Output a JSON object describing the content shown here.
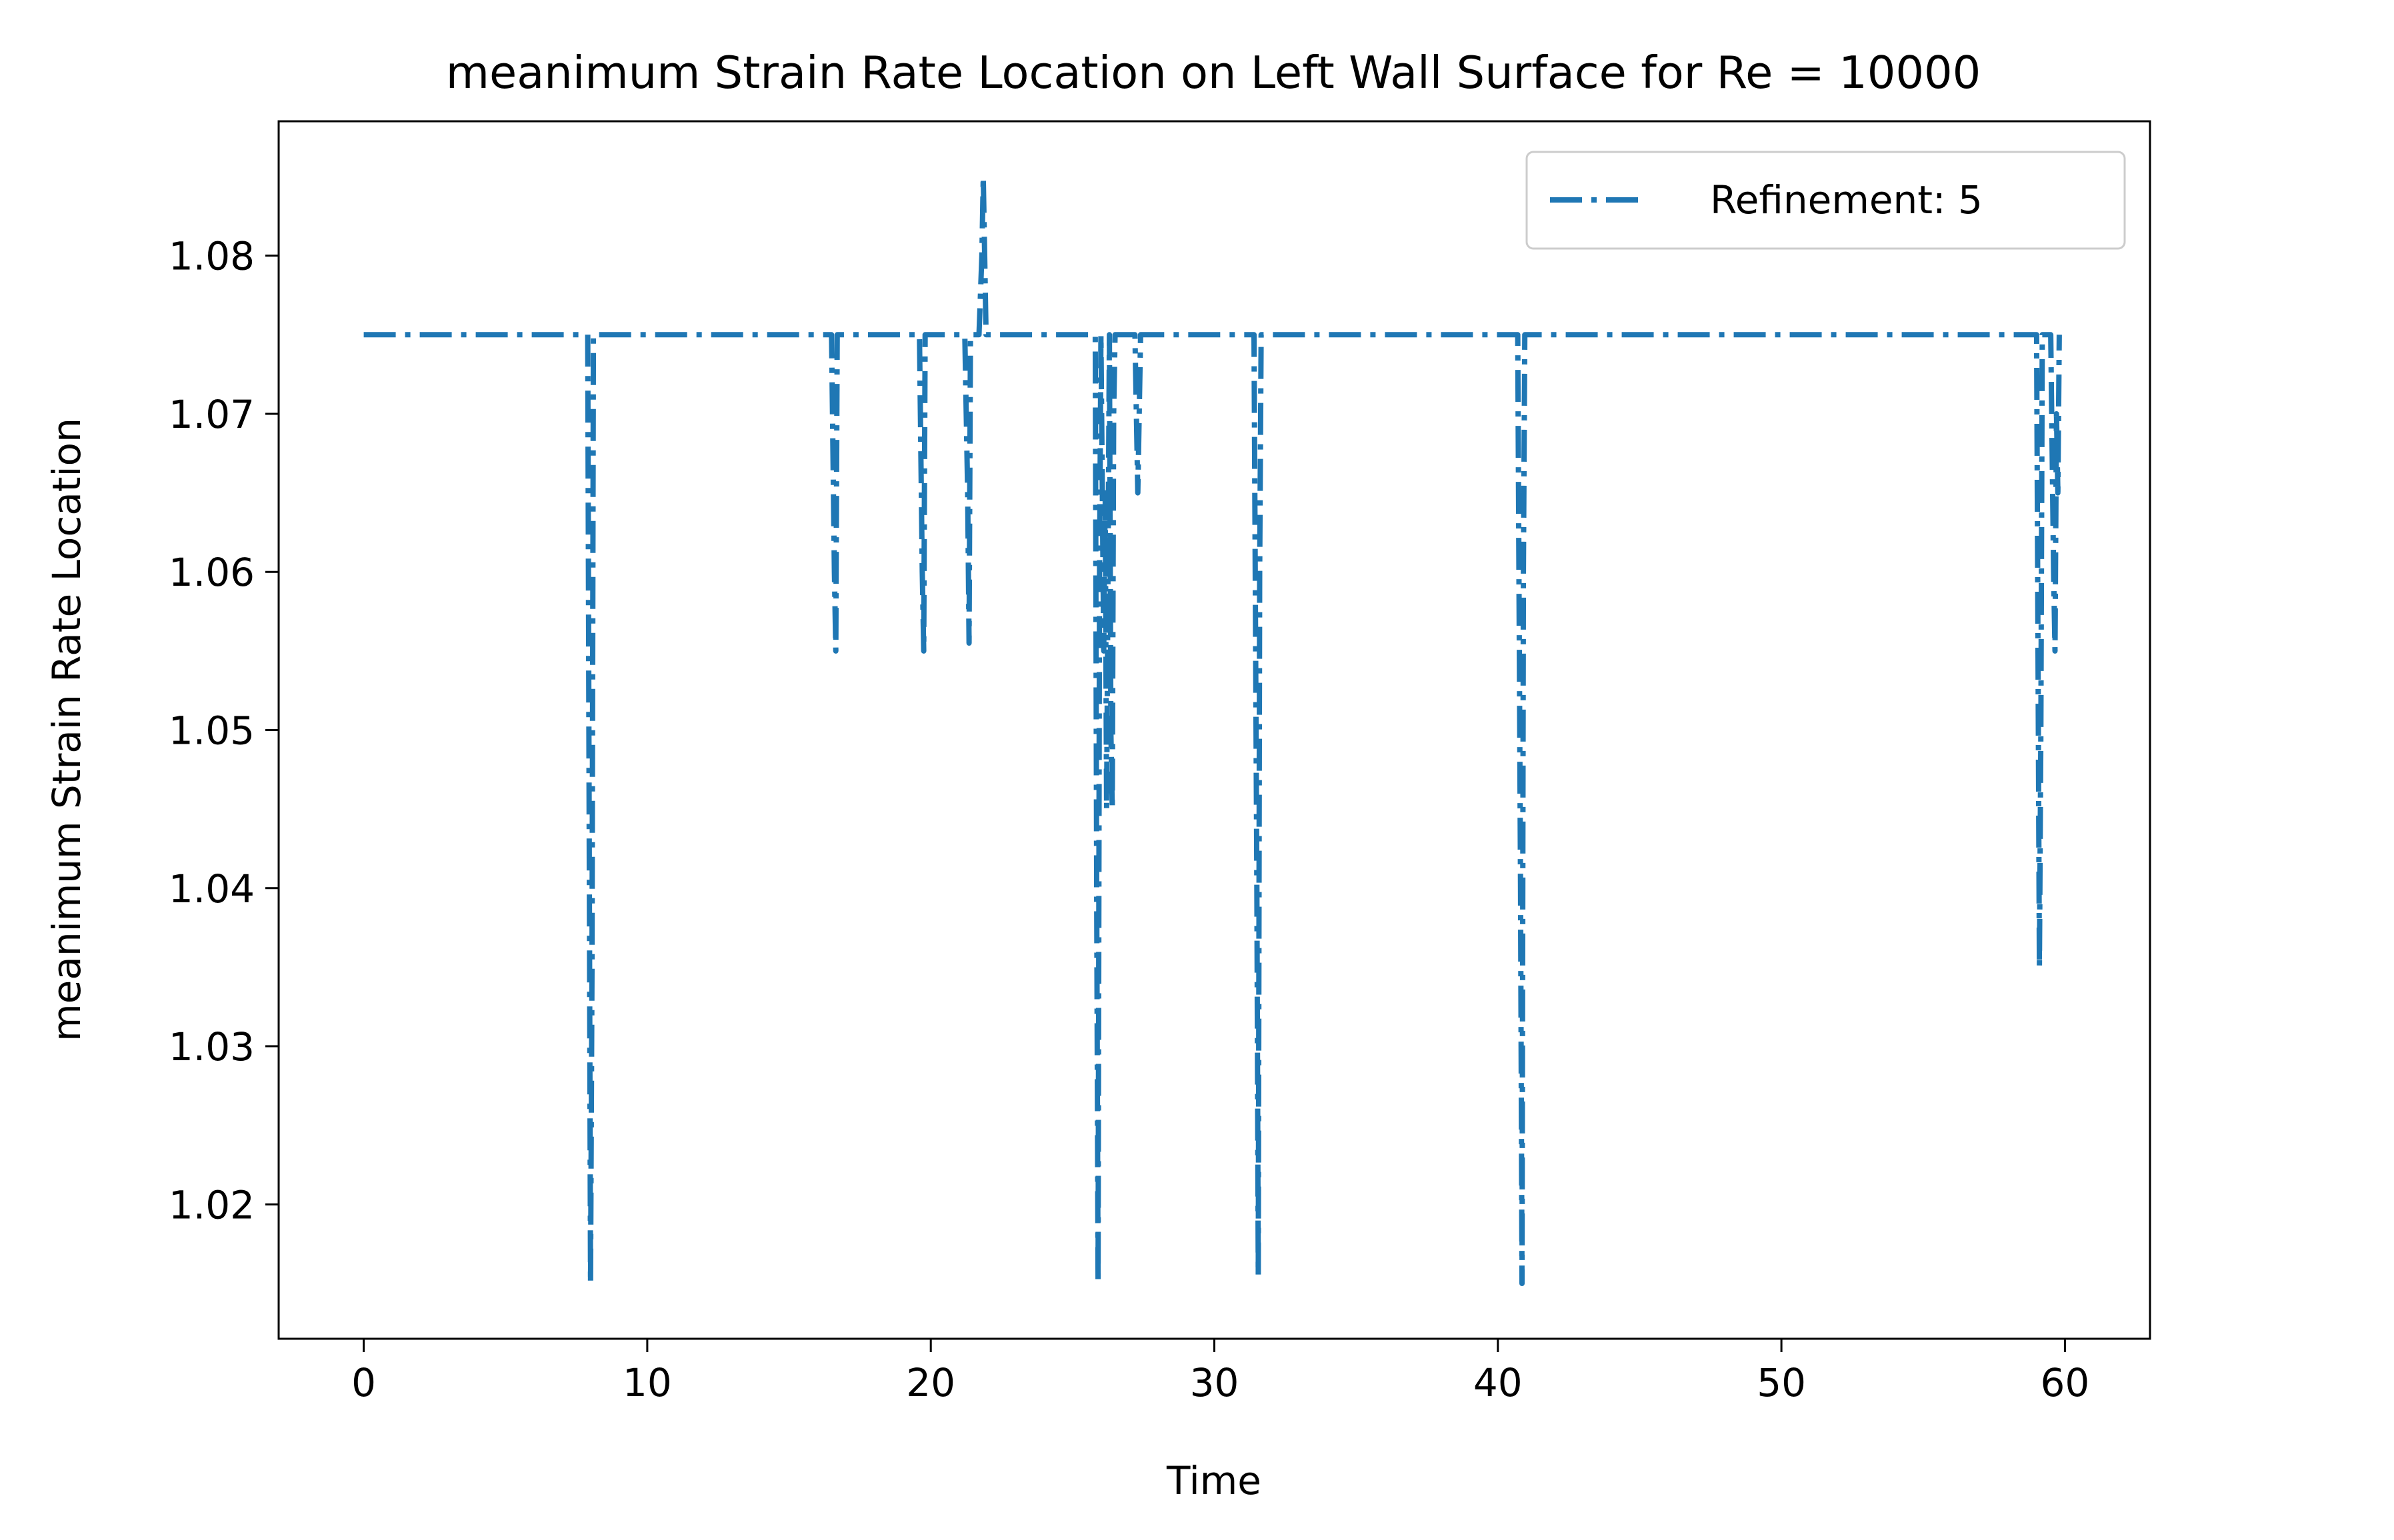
{
  "chart_data": {
    "type": "line",
    "title": "meanimum Strain Rate Location on Left Wall Surface for Re = 10000",
    "xlabel": "Time",
    "ylabel": "meanimum Strain Rate Location",
    "xlim": [
      -3,
      63
    ],
    "ylim": [
      1.0115,
      1.0885
    ],
    "xticks": [
      0,
      10,
      20,
      30,
      40,
      50,
      60
    ],
    "xtick_labels": [
      "0",
      "10",
      "20",
      "30",
      "40",
      "50",
      "60"
    ],
    "yticks": [
      1.02,
      1.03,
      1.04,
      1.05,
      1.06,
      1.07,
      1.08
    ],
    "ytick_labels": [
      "1.02",
      "1.03",
      "1.04",
      "1.05",
      "1.06",
      "1.07",
      "1.08"
    ],
    "grid": false,
    "legend": {
      "position": "top-right"
    },
    "series": [
      {
        "name": "Refinement: 5",
        "color": "#1f77b4",
        "linestyle": "dashdot",
        "x": [
          0,
          7.9,
          7.95,
          8.0,
          8.05,
          8.1,
          16.5,
          16.6,
          16.65,
          16.7,
          19.6,
          19.7,
          19.75,
          19.8,
          21.2,
          21.3,
          21.35,
          21.4,
          21.7,
          21.8,
          21.85,
          21.9,
          21.95,
          22.0,
          25.8,
          25.85,
          25.9,
          25.95,
          26.0,
          26.1,
          26.15,
          26.2,
          26.3,
          26.35,
          26.4,
          26.45,
          26.5,
          27.2,
          27.3,
          27.35,
          27.4,
          31.4,
          31.5,
          31.55,
          31.6,
          31.65,
          40.7,
          40.8,
          40.85,
          40.9,
          40.95,
          59.0,
          59.1,
          59.15,
          59.2,
          59.5,
          59.6,
          59.65,
          59.7,
          59.75,
          59.8
        ],
        "y": [
          1.075,
          1.075,
          1.045,
          1.015,
          1.035,
          1.075,
          1.075,
          1.06,
          1.055,
          1.075,
          1.075,
          1.06,
          1.055,
          1.075,
          1.075,
          1.065,
          1.0555,
          1.075,
          1.075,
          1.08,
          1.085,
          1.08,
          1.075,
          1.075,
          1.075,
          1.04,
          1.015,
          1.06,
          1.075,
          1.055,
          1.065,
          1.045,
          1.075,
          1.05,
          1.045,
          1.07,
          1.075,
          1.075,
          1.065,
          1.07,
          1.075,
          1.075,
          1.04,
          1.0155,
          1.06,
          1.075,
          1.075,
          1.04,
          1.015,
          1.06,
          1.075,
          1.075,
          1.035,
          1.05,
          1.075,
          1.075,
          1.06,
          1.055,
          1.07,
          1.065,
          1.075
        ]
      }
    ]
  }
}
